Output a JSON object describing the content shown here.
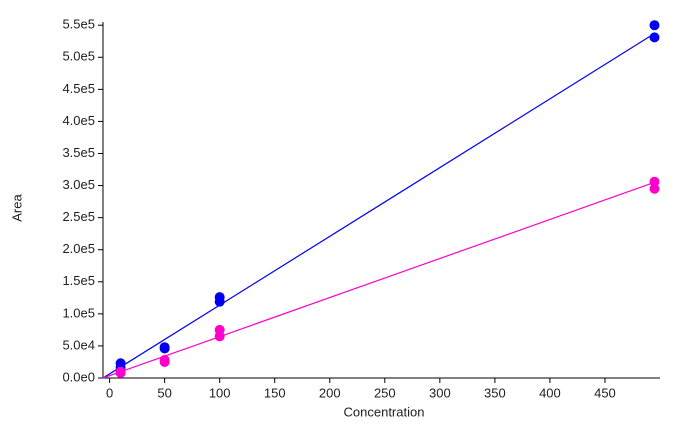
{
  "chart_data": {
    "type": "scatter",
    "x_label": "Concentration",
    "y_label": "Area",
    "xlim": [
      -6,
      500
    ],
    "ylim": [
      0,
      555000
    ],
    "xticks": [
      0,
      50,
      100,
      150,
      200,
      250,
      300,
      350,
      400,
      450
    ],
    "yticks": [
      {
        "value": 0,
        "label": "0.0e0"
      },
      {
        "value": 50000,
        "label": "5.0e4"
      },
      {
        "value": 100000,
        "label": "1.0e5"
      },
      {
        "value": 150000,
        "label": "1.5e5"
      },
      {
        "value": 200000,
        "label": "2.0e5"
      },
      {
        "value": 250000,
        "label": "2.5e5"
      },
      {
        "value": 300000,
        "label": "3.0e5"
      },
      {
        "value": 350000,
        "label": "3.5e5"
      },
      {
        "value": 400000,
        "label": "4.0e5"
      },
      {
        "value": 450000,
        "label": "4.5e5"
      },
      {
        "value": 500000,
        "label": "5.0e5"
      },
      {
        "value": 550000,
        "label": "5.5e5"
      }
    ],
    "series": [
      {
        "color": "#0000ee",
        "x": [
          10,
          10,
          50,
          50,
          100,
          100,
          495,
          495
        ],
        "values": [
          23000,
          16000,
          48000,
          46000,
          126000,
          119000,
          550000,
          531000
        ]
      },
      {
        "color": "#ff00cc",
        "x": [
          10,
          10,
          50,
          50,
          100,
          100,
          495,
          495
        ],
        "values": [
          10000,
          8000,
          28000,
          25000,
          75000,
          65000,
          306000,
          295000
        ]
      }
    ],
    "fit_lines": [
      {
        "color": "#0000ee",
        "x": [
          -6,
          495
        ],
        "values": [
          0,
          537000
        ]
      },
      {
        "color": "#ff00cc",
        "x": [
          -6,
          495
        ],
        "values": [
          0,
          305000
        ]
      }
    ]
  }
}
